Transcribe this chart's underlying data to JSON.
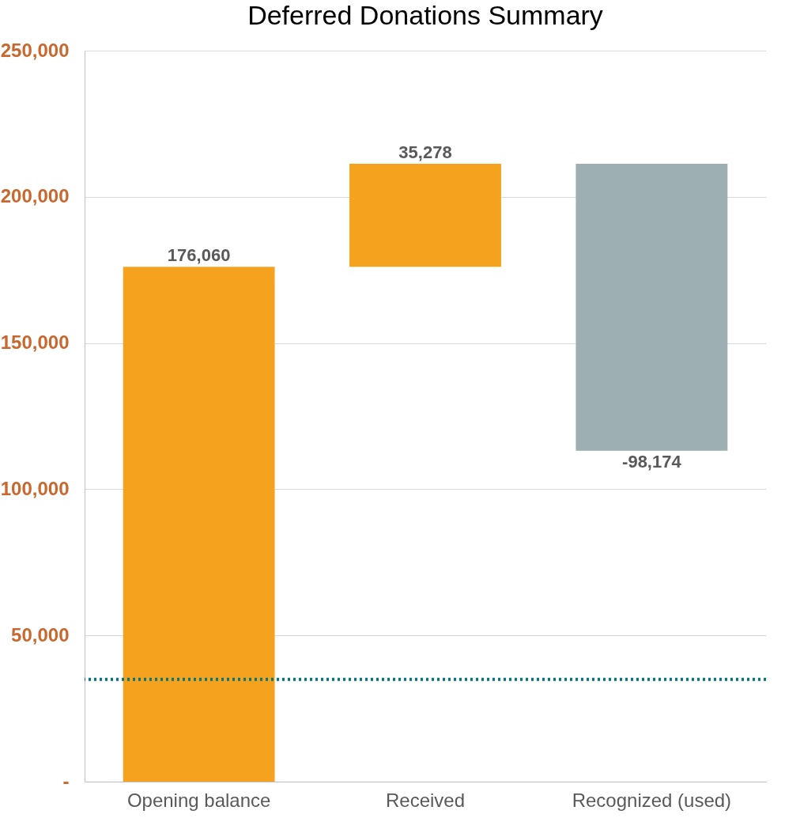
{
  "chart_data": {
    "type": "bar",
    "title": "Deferred Donations Summary",
    "categories": [
      "Opening balance",
      "Received",
      "Recognized (used)"
    ],
    "values": [
      176060,
      35278,
      -98174
    ],
    "base": [
      0,
      176060,
      211338
    ],
    "colors": [
      "#f5a31e",
      "#f5a31e",
      "#9dafb3"
    ],
    "value_labels": [
      "176,060",
      "35,278",
      "-98,174"
    ],
    "ylim": [
      0,
      250000
    ],
    "yticks": [
      {
        "value": 0,
        "label": "-"
      },
      {
        "value": 50000,
        "label": "50,000"
      },
      {
        "value": 100000,
        "label": "100,000"
      },
      {
        "value": 150000,
        "label": "150,000"
      },
      {
        "value": 200000,
        "label": "200,000"
      },
      {
        "value": 250000,
        "label": "250,000"
      }
    ],
    "grid": "y",
    "ref_lines": [
      {
        "axis": "y",
        "value": 35000,
        "color": "#00767d",
        "line_style": "dotted"
      }
    ]
  }
}
